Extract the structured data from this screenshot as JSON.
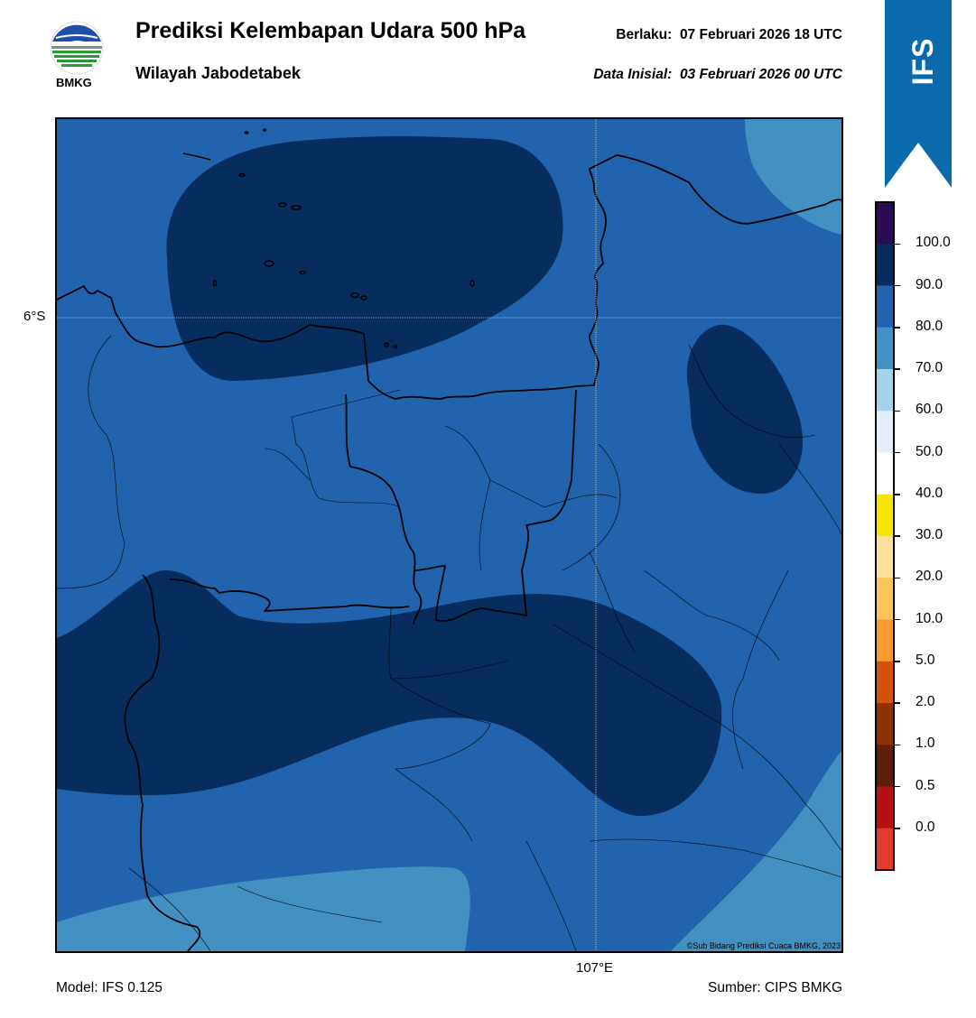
{
  "header": {
    "title": "Prediksi Kelembapan Udara 500 hPa",
    "subtitle": "Wilayah Jabodetabek",
    "valid_label": "Berlaku:",
    "valid_time": "07 Februari 2026 18 UTC",
    "init_label": "Data Inisial:",
    "init_time": "03 Februari 2026 00 UTC"
  },
  "logo": {
    "text": "BMKG",
    "icon": "bmkg-logo"
  },
  "badge": {
    "text": "IFS",
    "color": "#0a6aab"
  },
  "map": {
    "lat_label": "6°S",
    "lon_label": "107°E",
    "credit": "©Sub Bidang Prediksi Cuaca BMKG, 2023",
    "fill_colors": {
      "range_70_80": "#4291c2",
      "range_80_90": "#2164ad",
      "range_90_100": "#062d5e"
    }
  },
  "colorbar": {
    "levels": [
      "100.0",
      "90.0",
      "80.0",
      "70.0",
      "60.0",
      "50.0",
      "40.0",
      "30.0",
      "20.0",
      "10.0",
      "5.0",
      "2.0",
      "1.0",
      "0.5",
      "0.0"
    ],
    "colors": [
      "#2c0d55",
      "#062d5e",
      "#2164ad",
      "#4291c2",
      "#a6d2e8",
      "#e3eef9",
      "#ffffff",
      "#f7e400",
      "#fde19b",
      "#fcc55c",
      "#f89a2e",
      "#d4520c",
      "#8e3206",
      "#5e1f08",
      "#b51015",
      "#e23a2c"
    ]
  },
  "footer": {
    "model": "Model: IFS 0.125",
    "source": "Sumber: CIPS BMKG"
  }
}
